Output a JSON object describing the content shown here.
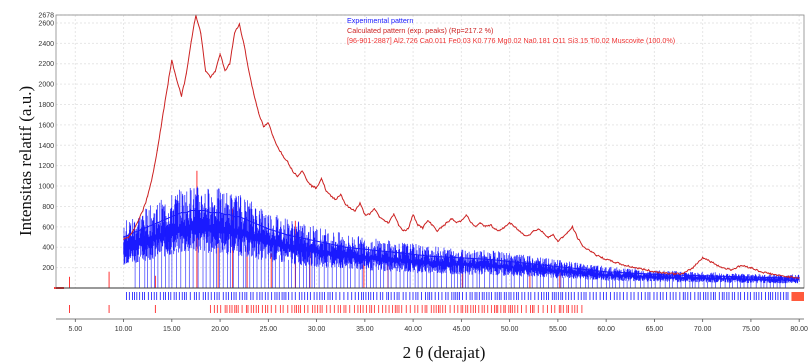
{
  "chart_data": {
    "type": "line",
    "xlabel": "2 θ (derajat)",
    "ylabel": "Intensitas relatif (a.u.)",
    "xlim": [
      3,
      80.5
    ],
    "ylim": [
      0,
      2678
    ],
    "x_ticks": [
      "5.00",
      "10.00",
      "15.00",
      "20.00",
      "25.00",
      "30.00",
      "35.00",
      "40.00",
      "45.00",
      "50.00",
      "55.00",
      "60.00",
      "65.00",
      "70.00",
      "75.00",
      "80.00"
    ],
    "y_ticks": [
      200,
      400,
      600,
      800,
      1000,
      1200,
      1400,
      1600,
      1800,
      2000,
      2200,
      2400,
      2600,
      2678
    ],
    "grid": true,
    "legend_position": "top-center",
    "legend": [
      {
        "label": "Experimental pattern",
        "color": "#1a1aff"
      },
      {
        "label": "Calculated pattern (exp. peaks) (Rp=217.2 %)",
        "color": "#cc2222"
      },
      {
        "label": "[96-901-2887] Al2.726 Ca0.011 Fe0.03 K0.776 Mg0.02 Na0.181 O11 Si3.15 Ti0.02  Muscovite (100.0%)",
        "color": "#ee3333"
      }
    ],
    "series": [
      {
        "name": "Experimental pattern",
        "color": "#1a1aff",
        "x": [
          10,
          10.5,
          11,
          11.5,
          12,
          12.5,
          13,
          13.5,
          14,
          14.5,
          15,
          15.5,
          16,
          16.5,
          17,
          17.5,
          18,
          18.5,
          19,
          19.5,
          20,
          20.5,
          21,
          21.5,
          22,
          22.5,
          23,
          23.5,
          24,
          24.5,
          25,
          26,
          27,
          28,
          29,
          30,
          31,
          32,
          33,
          34,
          35,
          36,
          37,
          38,
          39,
          40,
          42,
          44,
          46,
          48,
          50,
          52,
          54,
          56,
          58,
          60,
          62,
          64,
          66,
          68,
          70,
          72,
          74,
          76,
          78,
          80
        ],
        "y": [
          500,
          520,
          540,
          560,
          580,
          600,
          620,
          640,
          660,
          680,
          700,
          720,
          740,
          740,
          760,
          760,
          760,
          760,
          740,
          740,
          740,
          720,
          720,
          700,
          700,
          680,
          660,
          640,
          620,
          600,
          580,
          550,
          520,
          500,
          480,
          460,
          440,
          420,
          400,
          390,
          380,
          370,
          360,
          350,
          340,
          330,
          310,
          300,
          290,
          280,
          260,
          240,
          220,
          200,
          180,
          160,
          150,
          140,
          130,
          125,
          120,
          115,
          110,
          105,
          100,
          100
        ]
      },
      {
        "name": "Calculated pattern (exp. peaks) (Rp=217.2 %)",
        "color": "#cc2222",
        "x": [
          10,
          10.5,
          11,
          11.5,
          12,
          12.5,
          13,
          13.5,
          14,
          14.5,
          15,
          15.5,
          16,
          16.5,
          17,
          17.5,
          18,
          18.5,
          19,
          19.5,
          20,
          20.5,
          21,
          21.5,
          22,
          22.5,
          23,
          23.5,
          24,
          24.5,
          25,
          25.5,
          26,
          26.5,
          27,
          27.5,
          28,
          28.5,
          29,
          29.5,
          30,
          30.5,
          31,
          31.5,
          32,
          32.5,
          33,
          33.5,
          34,
          34.5,
          35,
          35.5,
          36,
          36.5,
          37,
          37.5,
          38,
          38.5,
          39,
          39.5,
          40,
          40.5,
          41,
          41.5,
          42,
          42.5,
          43,
          43.5,
          44,
          44.5,
          45,
          45.5,
          46,
          46.5,
          47,
          47.5,
          48,
          48.5,
          49,
          49.5,
          50,
          50.5,
          51,
          51.5,
          52,
          52.5,
          53,
          53.5,
          54,
          54.5,
          55,
          55.5,
          56,
          56.5,
          57,
          57.5,
          58,
          58.5,
          59,
          59.5,
          60,
          61,
          62,
          63,
          64,
          65,
          66,
          67,
          68,
          69,
          70,
          71,
          72,
          73,
          74,
          75,
          76,
          77,
          78,
          79,
          80
        ],
        "y": [
          480,
          500,
          560,
          650,
          760,
          900,
          1100,
          1350,
          1650,
          1950,
          2230,
          2050,
          1880,
          2100,
          2420,
          2678,
          2500,
          2130,
          2070,
          2120,
          2300,
          2130,
          2200,
          2500,
          2590,
          2380,
          2120,
          1900,
          1720,
          1580,
          1620,
          1480,
          1380,
          1300,
          1240,
          1150,
          1100,
          1150,
          1060,
          1000,
          980,
          1080,
          950,
          900,
          870,
          920,
          820,
          780,
          760,
          830,
          720,
          720,
          780,
          700,
          660,
          640,
          730,
          620,
          560,
          580,
          720,
          620,
          590,
          660,
          620,
          560,
          600,
          640,
          680,
          640,
          660,
          720,
          640,
          600,
          640,
          600,
          620,
          580,
          560,
          600,
          640,
          600,
          560,
          520,
          520,
          560,
          580,
          540,
          500,
          520,
          460,
          500,
          540,
          600,
          500,
          420,
          380,
          360,
          320,
          300,
          280,
          250,
          220,
          200,
          180,
          160,
          150,
          140,
          140,
          200,
          300,
          250,
          200,
          180,
          220,
          200,
          160,
          140,
          120,
          110,
          100
        ]
      }
    ],
    "reference_sticks_note": "[96-901-2887] Muscovite"
  }
}
